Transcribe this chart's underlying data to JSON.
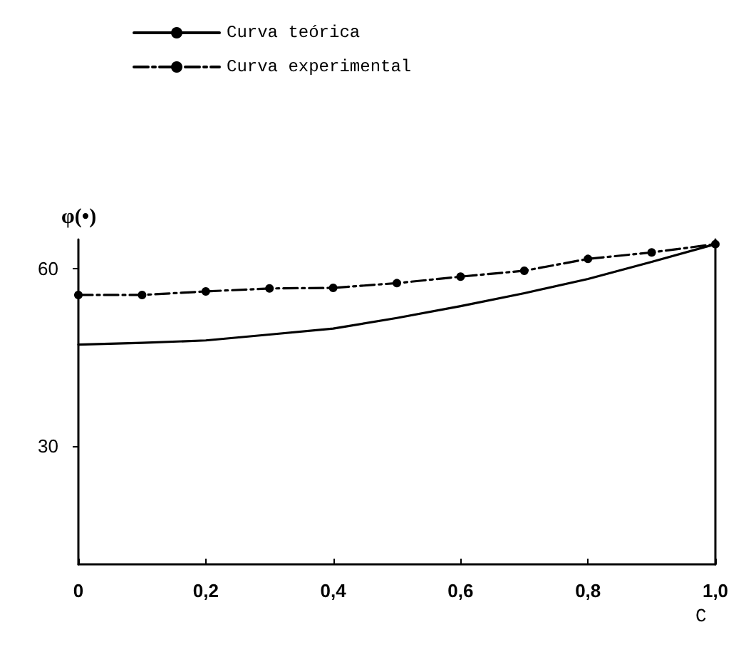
{
  "chart_data": {
    "type": "line",
    "xlabel": "C",
    "ylabel": "φ(•)",
    "x": [
      0,
      0.1,
      0.2,
      0.3,
      0.4,
      0.5,
      0.6,
      0.7,
      0.8,
      0.9,
      1.0
    ],
    "series": [
      {
        "name": "Curva teórica",
        "color": "#000000",
        "line_style": "solid",
        "marker": "none",
        "values": [
          47.2,
          47.5,
          47.9,
          48.9,
          49.9,
          51.7,
          53.7,
          55.9,
          58.3,
          61.2,
          64.2
        ]
      },
      {
        "name": "Curva experimental",
        "color": "#000000",
        "line_style": "dashed",
        "marker": "circle",
        "values": [
          55.6,
          55.6,
          56.2,
          56.7,
          56.8,
          57.6,
          58.7,
          59.7,
          61.7,
          62.8,
          64.2
        ]
      }
    ],
    "xlim": [
      0,
      1.0
    ],
    "xticks": [
      0,
      {
        "value": 0.2,
        "label": "0,2"
      },
      {
        "value": 0.4,
        "label": "0,4"
      },
      {
        "value": 0.6,
        "label": "0,6"
      },
      {
        "value": 0.8,
        "label": "0,8"
      },
      {
        "value": 1.0,
        "label": "1,0"
      }
    ],
    "ylim": [
      10,
      65
    ],
    "yticks": [
      30,
      60
    ],
    "grid": false,
    "legend": "top left"
  }
}
